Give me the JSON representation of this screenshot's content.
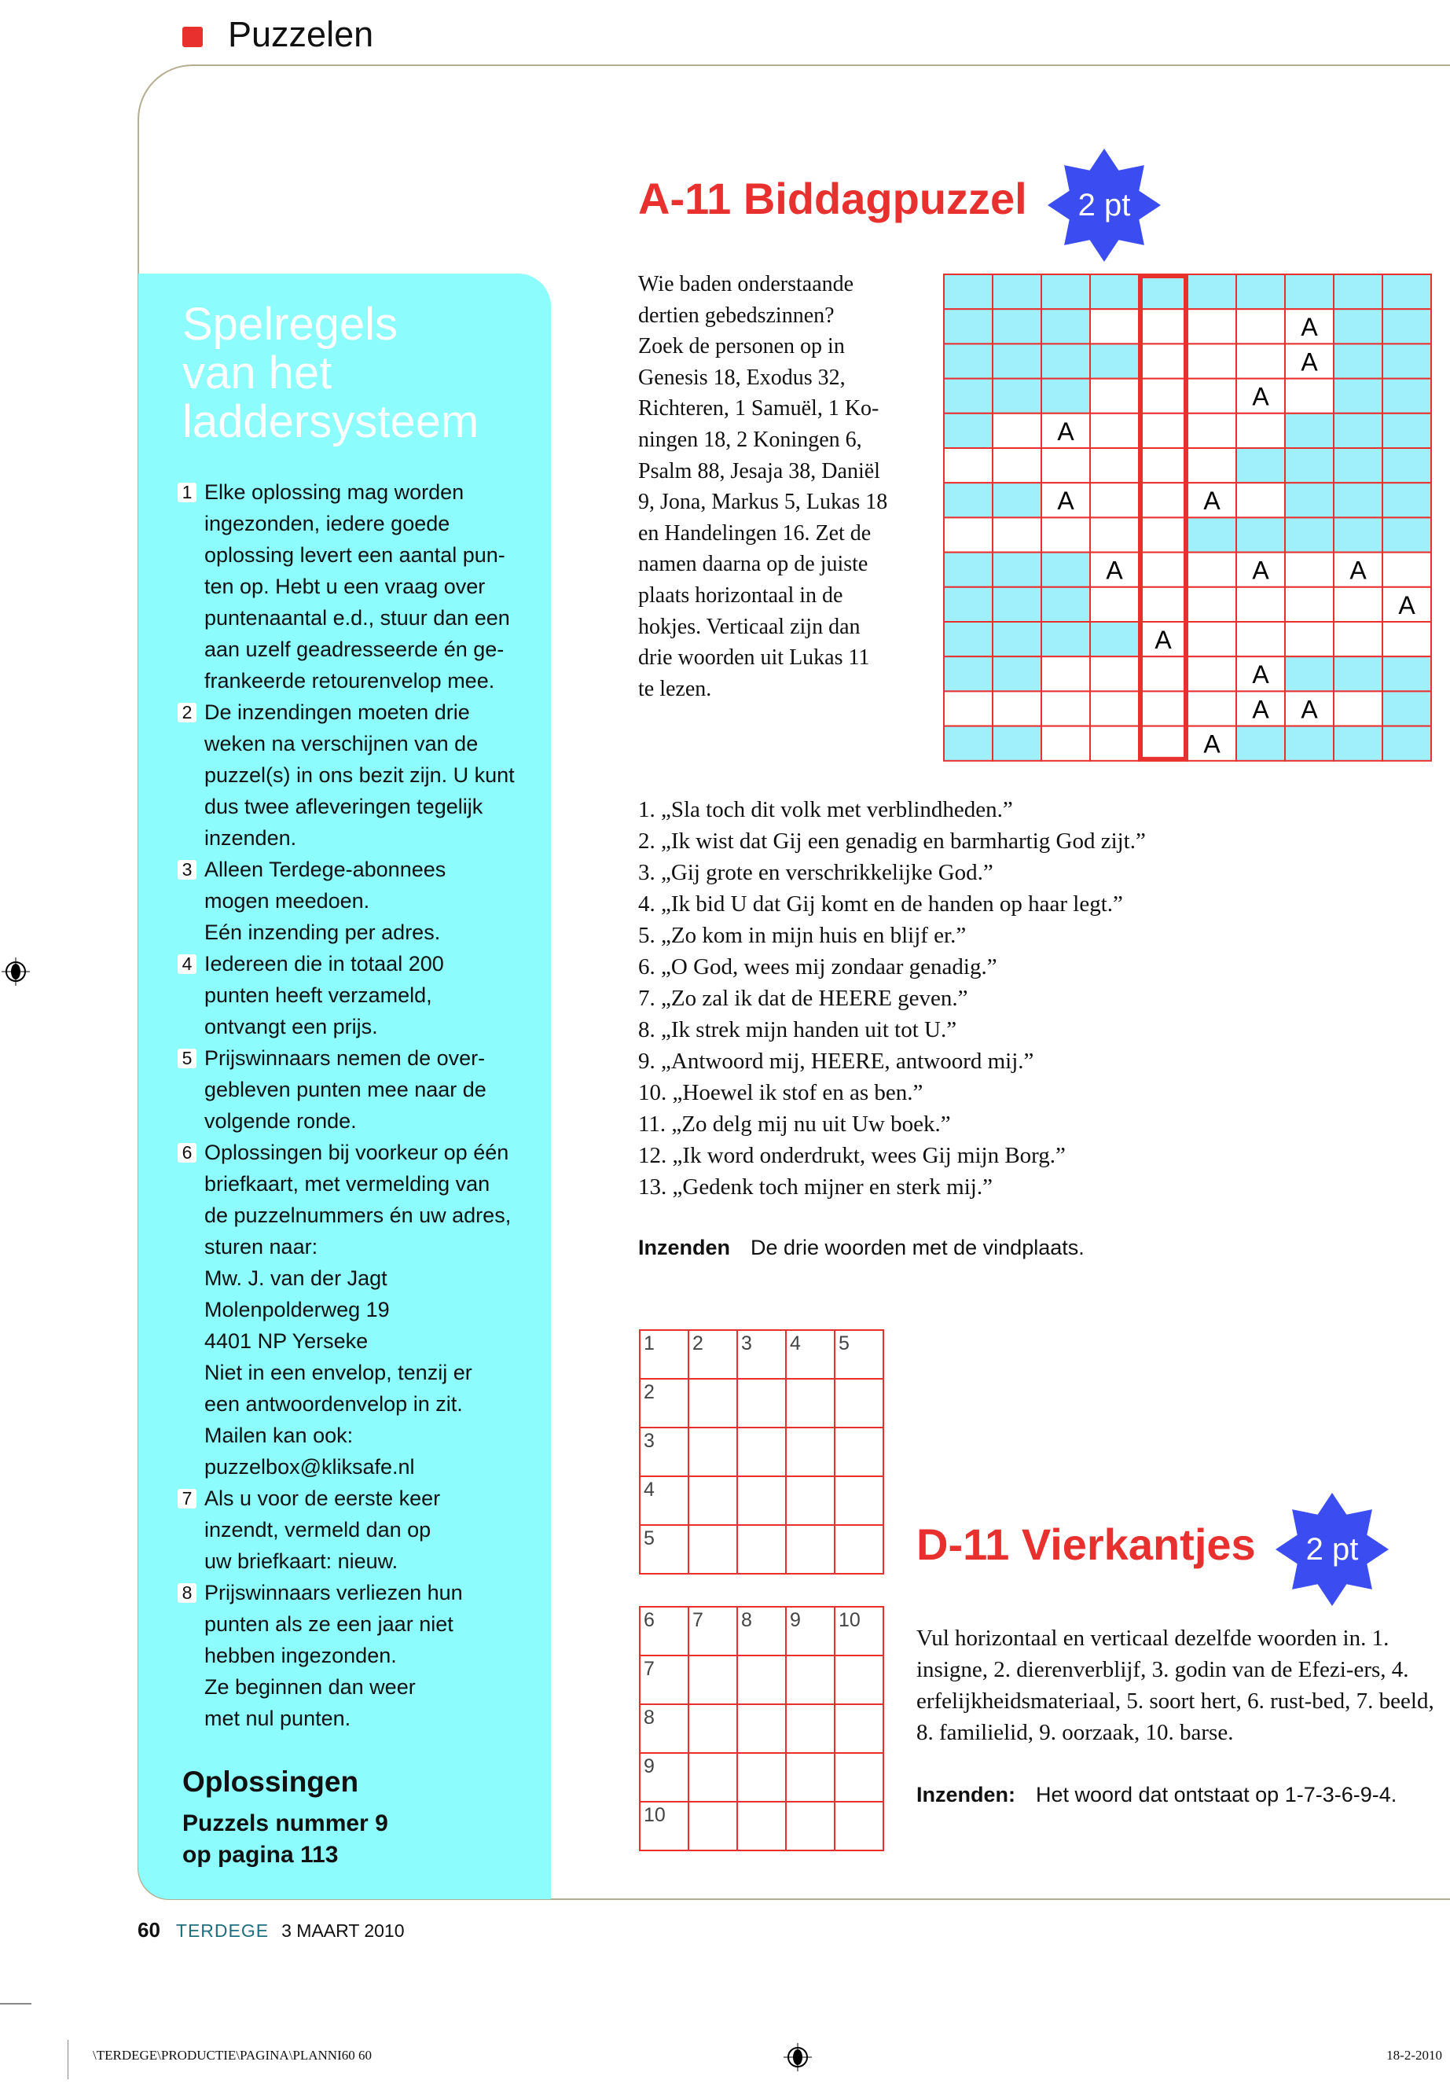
{
  "header": {
    "section": "Puzzelen",
    "accent": "#e8302f"
  },
  "rules_panel": {
    "title": "Spelregels\nvan het\nladdersysteem",
    "items": [
      {
        "n": "1",
        "text": "Elke oplossing mag worden\ningezonden, iedere goede\noplossing levert een aantal pun-\nten op. Hebt u een vraag over\npuntenaantal e.d., stuur dan een\naan uzelf geadresseerde én ge-\nfrankeerde retourenvelop mee."
      },
      {
        "n": "2",
        "text": "De inzendingen moeten drie\nweken na verschijnen van de\npuzzel(s) in ons bezit zijn. U kunt\ndus twee afleveringen tegelijk\ninzenden."
      },
      {
        "n": "3",
        "text": "Alleen Terdege-abonnees\nmogen meedoen.\nEén inzending per adres."
      },
      {
        "n": "4",
        "text": "Iedereen die in totaal 200\npunten heeft verzameld,\nontvangt een prijs."
      },
      {
        "n": "5",
        "text": "Prijswinnaars nemen de over-\ngebleven punten mee naar de\nvolgende ronde."
      },
      {
        "n": "6",
        "text": "Oplossingen bij voorkeur op één\nbriefkaart, met vermelding  van\nde puzzelnummers én uw adres,\nsturen naar:\nMw. J. van der Jagt\nMolenpolderweg 19\n4401 NP Yerseke\nNiet in een envelop, tenzij er\neen antwoordenvelop in zit.\nMailen kan ook:\npuzzelbox@kliksafe.nl"
      },
      {
        "n": "7",
        "text": "Als u voor de eerste keer\ninzendt, vermeld dan op\nuw briefkaart: nieuw."
      },
      {
        "n": "8",
        "text": "Prijswinnaars verliezen hun\npunten als ze een jaar niet\nhebben ingezonden.\nZe beginnen dan weer\nmet nul punten."
      }
    ],
    "solutions_title": "Oplossingen",
    "solutions_text": "Puzzels nummer 9\nop pagina 113",
    "color": "#8cfcfc"
  },
  "puzzle_a": {
    "title": "A-11 Biddagpuzzel",
    "points": "2 pt",
    "intro": "Wie baden onderstaande\ndertien gebedszinnen?\nZoek de personen op in\nGenesis 18, Exodus 32,\nRichteren, 1 Samuël, 1 Ko-\nningen 18, 2 Koningen 6,\nPsalm 88, Jesaja 38, Daniël\n9, Jona, Markus 5, Lukas 18\nen Handelingen 16. Zet de\nnamen daarna op de juiste\nplaats horizontaal in de\nhokjes. Verticaal zijn dan\ndrie woorden uit Lukas 11\nte lezen.",
    "grid": [
      "..........",
      "...____A..",
      "....___A..",
      "...___A_..",
      "._A____...",
      "______....",
      "..A__A_...",
      "_____.....",
      "...A__A_A_",
      "...______A.",
      "....A____",
      "..____A...",
      "______AA_.",
      "..___A...."
    ],
    "highlight_column": 5,
    "clues": [
      "1. „Sla toch dit volk met verblindheden.”",
      "2. „Ik wist dat Gij een genadig en barmhartig God zijt.”",
      "3. „Gij grote en verschrikkelijke God.”",
      "4. „Ik bid U dat Gij komt en de handen op haar legt.”",
      "5. „Zo kom in mijn huis en blijf er.”",
      "6. „O God, wees mij zondaar genadig.”",
      "7. „Zo zal ik dat de HEERE geven.”",
      "8. „Ik strek mijn handen uit tot U.”",
      "9. „Antwoord mij, HEERE, antwoord mij.”",
      "10. „Hoewel ik stof en as ben.”",
      "11. „Zo delg mij nu uit Uw boek.”",
      "12. „Ik word onderdrukt, wees Gij mijn Borg.”",
      "13. „Gedenk toch mijner en sterk mij.”"
    ],
    "submit_label": "Inzenden",
    "submit_text": "De drie woorden met de vindplaats."
  },
  "puzzle_d": {
    "title": "D-11 Vierkantjes",
    "points": "2 pt",
    "grid1_top": [
      "1",
      "2",
      "3",
      "4",
      "5"
    ],
    "grid1_left": [
      "1",
      "2",
      "3",
      "4",
      "5"
    ],
    "grid2_top": [
      "6",
      "7",
      "8",
      "9",
      "10"
    ],
    "grid2_left": [
      "6",
      "7",
      "8",
      "9",
      "10"
    ],
    "description": "Vul horizontaal en verticaal dezelfde woorden in. 1. insigne, 2. dierenverblijf, 3. godin van de Efezi-ers, 4. erfelijkheidsmateriaal, 5. soort hert, 6. rust-bed, 7. beeld, 8. familielid, 9. oorzaak, 10. barse.",
    "submit_label": "Inzenden:",
    "submit_text": "Het woord dat ontstaat op 1-7-3-6-9-4."
  },
  "footer": {
    "page": "60",
    "magazine": "TERDEGE",
    "date": "3 MAART 2010"
  },
  "print_line": {
    "path": "\\TERDEGE\\PRODUCTIE\\PAGINA\\PLANNI60   60",
    "date": "18-2-2010"
  },
  "colors": {
    "red": "#e8302f",
    "badge": "#3b4cf0",
    "cell": "#9ff0fb"
  }
}
